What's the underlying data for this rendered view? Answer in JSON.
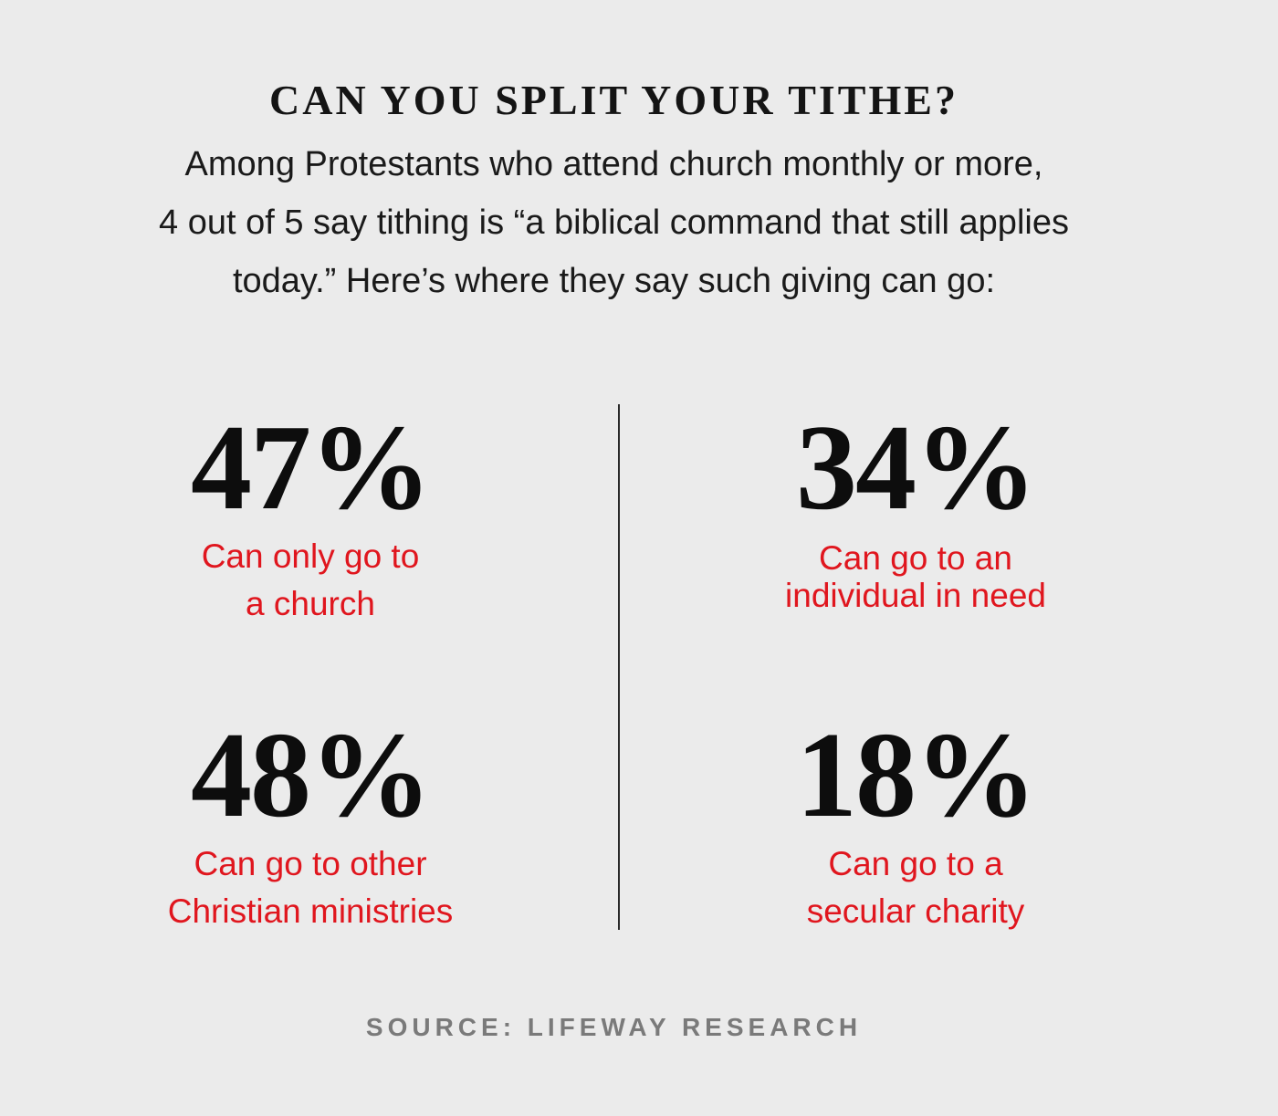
{
  "title": "CAN YOU SPLIT YOUR TITHE?",
  "subtitle_lines": [
    "Among Protestants who attend church monthly or more,",
    "4 out of 5 say tithing is “a biblical command that still applies",
    "today.” Here’s where they say such giving can go:"
  ],
  "source": "SOURCE: LIFEWAY RESEARCH",
  "colors": {
    "background": "#ebebeb",
    "number": "#0d0d0d",
    "label": "#e0161e",
    "source": "#7a7a7a"
  },
  "chart_data": {
    "type": "table",
    "title": "CAN YOU SPLIT YOUR TITHE?",
    "stats": [
      {
        "value": "47%",
        "percent": 47,
        "label_lines": [
          "Can only go to",
          "a church"
        ]
      },
      {
        "value": "34%",
        "percent": 34,
        "label_lines": [
          "Can go to an",
          "individual in need"
        ]
      },
      {
        "value": "48%",
        "percent": 48,
        "label_lines": [
          "Can go to other",
          "Christian ministries"
        ]
      },
      {
        "value": "18%",
        "percent": 18,
        "label_lines": [
          "Can go to a",
          "secular charity"
        ]
      }
    ]
  }
}
